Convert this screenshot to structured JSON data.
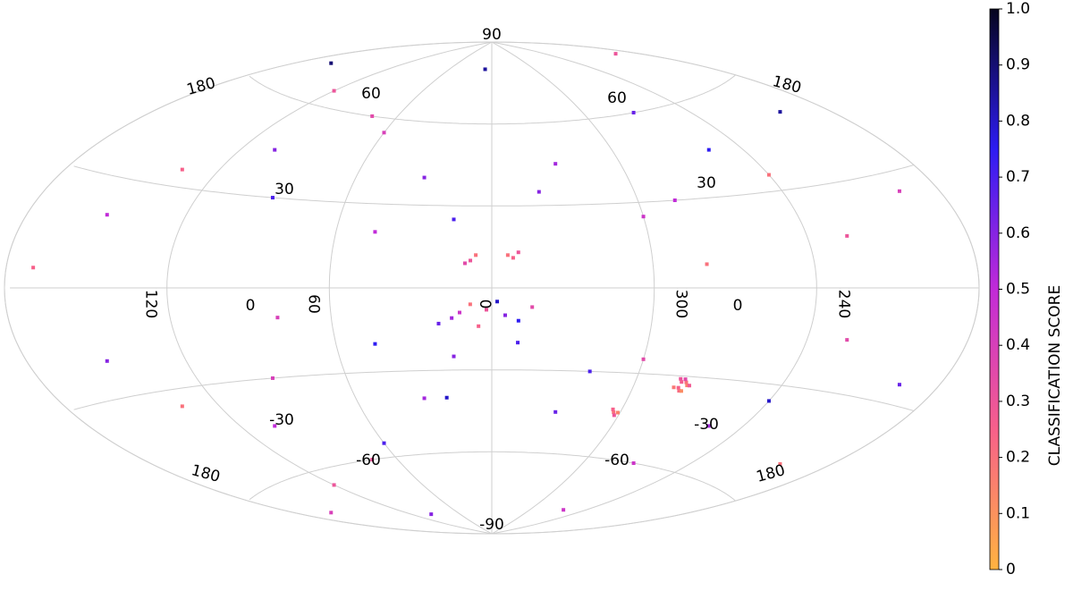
{
  "chart_data": {
    "type": "scatter",
    "projection": "aitoff",
    "x": [
      2,
      355,
      8,
      350,
      12,
      5,
      358,
      15,
      345,
      20,
      279,
      281,
      278,
      282,
      280,
      277,
      283,
      280,
      279,
      281,
      303,
      302,
      304,
      301,
      8,
      6,
      10,
      352,
      350,
      354,
      30,
      60,
      90,
      120,
      150,
      200,
      240,
      270,
      300,
      330,
      15,
      45,
      75,
      105,
      135,
      165,
      195,
      225,
      255,
      285,
      30,
      60,
      90,
      120,
      150,
      200,
      240,
      270,
      300,
      330,
      15,
      45,
      75,
      105,
      135,
      165,
      195,
      225,
      255,
      320,
      10,
      190,
      100,
      260,
      170,
      350,
      80,
      280,
      20,
      340
    ],
    "y": [
      -8,
      -10,
      -6,
      -12,
      -9,
      -14,
      -5,
      -11,
      -7,
      -13,
      -32,
      -34,
      -33,
      -31,
      -35,
      -33,
      -34,
      -31,
      -35,
      -32,
      -44,
      -45,
      -43,
      -44,
      10,
      12,
      9,
      11,
      13,
      12,
      40,
      55,
      30,
      65,
      20,
      50,
      35,
      60,
      25,
      45,
      25,
      20,
      60,
      45,
      35,
      70,
      25,
      15,
      45,
      30,
      -40,
      -55,
      -30,
      -65,
      -20,
      -50,
      -35,
      -60,
      -25,
      -45,
      -25,
      -20,
      -60,
      -45,
      -35,
      -70,
      -25,
      -15,
      -45,
      -30,
      80,
      75,
      -80,
      -78,
      5,
      -20,
      -10,
      8,
      -40,
      35
    ],
    "values": [
      0.3,
      0.6,
      0.2,
      0.75,
      0.45,
      0.25,
      0.8,
      0.55,
      0.35,
      0.65,
      0.2,
      0.25,
      0.15,
      0.3,
      0.22,
      0.28,
      0.18,
      0.35,
      0.12,
      0.27,
      0.2,
      0.3,
      0.25,
      0.15,
      0.3,
      0.2,
      0.35,
      0.25,
      0.3,
      0.2,
      0.6,
      0.4,
      0.7,
      0.3,
      0.5,
      0.85,
      0.2,
      0.65,
      0.45,
      0.55,
      0.7,
      0.5,
      0.35,
      0.6,
      0.25,
      0.9,
      0.4,
      0.3,
      0.75,
      0.5,
      0.55,
      0.7,
      0.4,
      0.3,
      0.6,
      0.2,
      0.8,
      0.45,
      0.35,
      0.65,
      0.6,
      0.75,
      0.3,
      0.5,
      0.2,
      0.4,
      0.65,
      0.35,
      0.55,
      0.7,
      0.85,
      0.3,
      0.6,
      0.45,
      0.25,
      0.7,
      0.4,
      0.2,
      0.8,
      0.6
    ],
    "xticks": [
      120,
      60,
      0,
      300,
      240
    ],
    "yticks": [
      -90,
      90
    ],
    "overlay_labels_left": [
      180,
      60,
      30,
      0,
      -30,
      -60,
      180
    ],
    "overlay_labels_right": [
      180,
      60,
      30,
      0,
      -30,
      -60,
      180
    ],
    "colorbar": {
      "label": "CLASSIFICATION SCORE",
      "lim": [
        0,
        1
      ],
      "ticks": [
        0,
        0.1,
        0.2,
        0.3,
        0.4,
        0.5,
        0.6,
        0.7,
        0.8,
        0.9,
        {
          "value": 1,
          "label": "1.0"
        }
      ]
    },
    "colormap": [
      "#ffb340",
      "#f7608a",
      "#c12ad8",
      "#2d1cf2",
      "#05051e"
    ],
    "grid": true
  }
}
